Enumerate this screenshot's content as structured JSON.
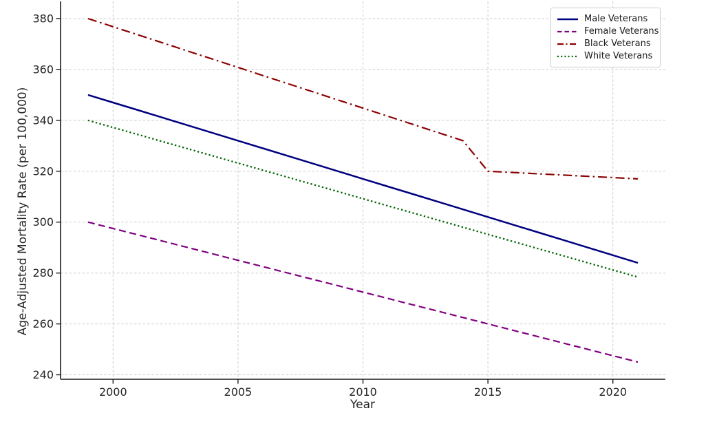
{
  "chart_data": {
    "type": "line",
    "x": [
      1999,
      2000,
      2001,
      2002,
      2003,
      2004,
      2005,
      2006,
      2007,
      2008,
      2009,
      2010,
      2011,
      2012,
      2013,
      2014,
      2015,
      2016,
      2017,
      2018,
      2019,
      2020,
      2021
    ],
    "series": [
      {
        "name": "Male Veterans",
        "color": "#000080",
        "style": "solid",
        "width": 2.5,
        "values": [
          350,
          347,
          344,
          341,
          338,
          335,
          332,
          329,
          326,
          323,
          320,
          317,
          314,
          311,
          308,
          305,
          302,
          299,
          296,
          293,
          290,
          287,
          284
        ]
      },
      {
        "name": "Female Veterans",
        "color": "#800080",
        "style": "dashed",
        "width": 2.2,
        "values": [
          300,
          297.5,
          295,
          292.5,
          290,
          287.5,
          285,
          282.5,
          280,
          277.5,
          275,
          272.5,
          270,
          267.5,
          265,
          262.5,
          260,
          257.5,
          255,
          252.5,
          250,
          247.5,
          245
        ]
      },
      {
        "name": "Black Veterans",
        "color": "#8B0000",
        "style": "dashdot",
        "width": 2.2,
        "values": [
          380,
          376.8,
          373.6,
          370.4,
          367.2,
          364,
          360.8,
          357.6,
          354.4,
          351.2,
          348,
          344.8,
          341.6,
          338.4,
          335.2,
          332,
          320,
          319.5,
          319,
          318.5,
          318,
          317.5,
          317
        ]
      },
      {
        "name": "White Veterans",
        "color": "#006400",
        "style": "dotted",
        "width": 2.3,
        "values": [
          340,
          337.2,
          334.4,
          331.6,
          328.8,
          326,
          323.2,
          320.4,
          317.6,
          314.8,
          312,
          309.2,
          306.4,
          303.6,
          300.8,
          298,
          295.2,
          292.4,
          289.6,
          286.8,
          284,
          281.2,
          278.4
        ]
      }
    ],
    "title": "",
    "xlabel": "Year",
    "ylabel": "Age-Adjusted Mortality Rate (per 100,000)",
    "xticks": [
      2000,
      2005,
      2010,
      2015,
      2020
    ],
    "yticks": [
      240,
      260,
      280,
      300,
      320,
      340,
      360,
      380
    ],
    "xlim": [
      1997.9,
      2022.1
    ],
    "ylim": [
      238.25,
      386.75
    ],
    "grid": true,
    "grid_color": "#cccccc",
    "spine_color": "#1a1a1a",
    "legend_position": "upper right"
  }
}
